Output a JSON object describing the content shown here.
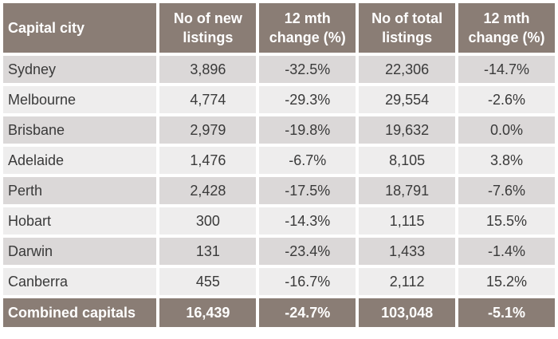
{
  "table": {
    "headers": [
      "Capital city",
      "No of new\nlistings",
      "12 mth\nchange (%)",
      "No of total\nlistings",
      "12 mth\nchange (%)"
    ],
    "rows": [
      [
        "Sydney",
        "3,896",
        "-32.5%",
        "22,306",
        "-14.7%"
      ],
      [
        "Melbourne",
        "4,774",
        "-29.3%",
        "29,554",
        "-2.6%"
      ],
      [
        "Brisbane",
        "2,979",
        "-19.8%",
        "19,632",
        "0.0%"
      ],
      [
        "Adelaide",
        "1,476",
        "-6.7%",
        "8,105",
        "3.8%"
      ],
      [
        "Perth",
        "2,428",
        "-17.5%",
        "18,791",
        "-7.6%"
      ],
      [
        "Hobart",
        "300",
        "-14.3%",
        "1,115",
        "15.5%"
      ],
      [
        "Darwin",
        "131",
        "-23.4%",
        "1,433",
        "-1.4%"
      ],
      [
        "Canberra",
        "455",
        "-16.7%",
        "2,112",
        "15.2%"
      ]
    ],
    "total": [
      "Combined capitals",
      "16,439",
      "-24.7%",
      "103,048",
      "-5.1%"
    ]
  },
  "colors": {
    "header_bg": "#8a7d75",
    "row_odd_bg": "#dbd8d8",
    "row_even_bg": "#eeeded",
    "text": "#3a3a3a"
  }
}
